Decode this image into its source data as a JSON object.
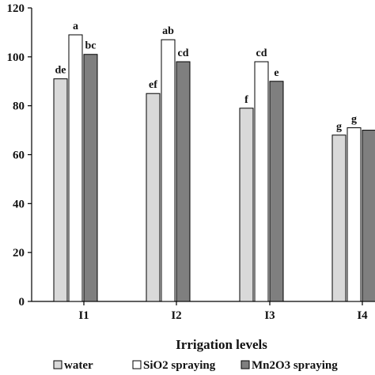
{
  "chart_data": {
    "type": "bar",
    "categories": [
      "I1",
      "I2",
      "I3",
      "I4"
    ],
    "series": [
      {
        "name": "water",
        "color": "#d9d9d9",
        "values": [
          91,
          85,
          79,
          68
        ],
        "labels": [
          "de",
          "ef",
          "f",
          "g"
        ]
      },
      {
        "name": "SiO2 spraying",
        "color": "#ffffff",
        "values": [
          109,
          107,
          98,
          71
        ],
        "labels": [
          "a",
          "ab",
          "cd",
          "g"
        ]
      },
      {
        "name": "Mn2O3 spraying",
        "color": "#7f7f7f",
        "values": [
          101,
          98,
          90,
          70
        ],
        "labels": [
          "bc",
          "cd",
          "e",
          ""
        ]
      }
    ],
    "xlabel": "Irrigation levels",
    "ylabel": "",
    "ylim": [
      0,
      120
    ],
    "yticks": [
      0,
      20,
      40,
      60,
      80,
      100,
      120
    ],
    "grid": false,
    "legend_position": "bottom"
  }
}
